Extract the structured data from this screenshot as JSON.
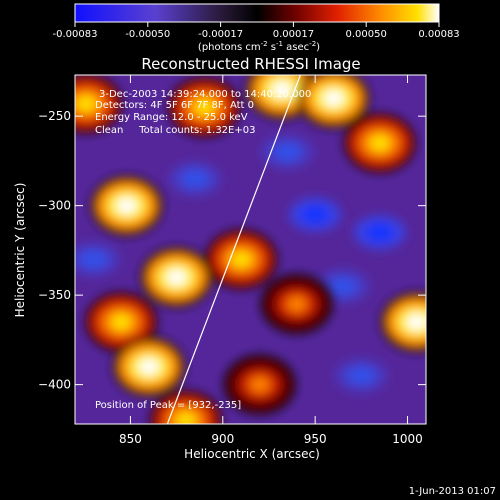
{
  "colorbar": {
    "ticks": [
      "-0.00083",
      "-0.00050",
      "-0.00017",
      "0.00017",
      "0.00050",
      "0.00083"
    ],
    "unit_main": "(photons cm",
    "unit_exp1": "-2",
    "unit_s": " s",
    "unit_exp2": "-1",
    "unit_asec": " asec",
    "unit_exp3": "-2",
    "unit_close": ")"
  },
  "chart_data": {
    "type": "heatmap",
    "title": "Reconstructed RHESSI Image",
    "xlabel": "Heliocentric X (arcsec)",
    "ylabel": "Heliocentric Y (arcsec)",
    "xlim": [
      820,
      1010
    ],
    "ylim": [
      -422,
      -227
    ],
    "x_ticks": [
      850,
      900,
      950,
      1000
    ],
    "y_ticks": [
      -250,
      -300,
      -350,
      -400
    ],
    "x_tick_labels": [
      "850",
      "900",
      "950",
      "1000"
    ],
    "y_tick_labels": [
      "−250",
      "−300",
      "−350",
      "−400"
    ],
    "color_range": [
      -0.00083,
      0.00083
    ],
    "colormap": "rhessi (blue-purple-black-red-orange-yellow-white)",
    "limb_line": [
      [
        870,
        -422
      ],
      [
        942,
        -227
      ]
    ],
    "info_lines": [
      "3-Dec-2003 14:39:24.000 to 14:40:20.000",
      "Detectors: 4F 5F 6F 7F 8F, Att 0",
      "Energy Range: 12.0 - 25.0 keV",
      "Clean     Total counts: 1.32E+03"
    ],
    "peak_text": "Position of Peak = [932,-235]",
    "peak": [
      932,
      -235
    ],
    "bright_sources": [
      {
        "x": 826,
        "y": -243,
        "v": 0.0005
      },
      {
        "x": 848,
        "y": -300,
        "v": 0.00083
      },
      {
        "x": 890,
        "y": -245,
        "v": 0.0005
      },
      {
        "x": 932,
        "y": -235,
        "v": 0.00083
      },
      {
        "x": 960,
        "y": -240,
        "v": 0.00083
      },
      {
        "x": 985,
        "y": -265,
        "v": 0.00055
      },
      {
        "x": 875,
        "y": -340,
        "v": 0.00083
      },
      {
        "x": 910,
        "y": -330,
        "v": 0.0005
      },
      {
        "x": 845,
        "y": -365,
        "v": 0.00055
      },
      {
        "x": 860,
        "y": -390,
        "v": 0.00083
      },
      {
        "x": 940,
        "y": -355,
        "v": 0.0004
      },
      {
        "x": 1005,
        "y": -365,
        "v": 0.00083
      },
      {
        "x": 920,
        "y": -400,
        "v": 0.0004
      },
      {
        "x": 880,
        "y": -420,
        "v": 0.0005
      }
    ],
    "dim_sources": [
      {
        "x": 885,
        "y": -285,
        "v": -0.0005
      },
      {
        "x": 950,
        "y": -305,
        "v": -0.0007
      },
      {
        "x": 985,
        "y": -315,
        "v": -0.0006
      },
      {
        "x": 935,
        "y": -270,
        "v": -0.00045
      },
      {
        "x": 975,
        "y": -395,
        "v": -0.0005
      },
      {
        "x": 965,
        "y": -345,
        "v": -0.00045
      },
      {
        "x": 830,
        "y": -330,
        "v": -0.0004
      }
    ]
  },
  "footer": {
    "date": "1-Jun-2013 01:07"
  }
}
